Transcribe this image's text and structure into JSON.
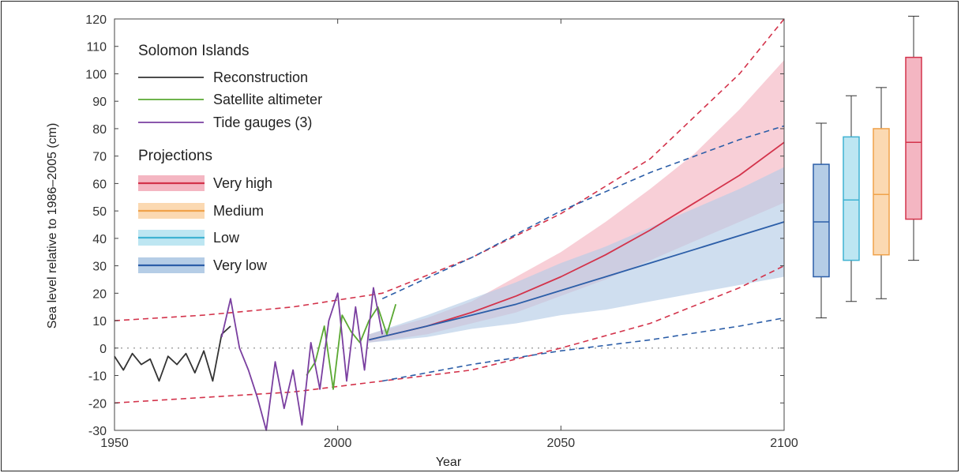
{
  "chart_data": {
    "type": "line",
    "xlabel": "Year",
    "ylabel": "Sea level relative to 1986–2005 (cm)",
    "xlim": [
      1950,
      2100
    ],
    "ylim": [
      -30,
      120
    ],
    "xticks": [
      "1950",
      "2000",
      "2050",
      "2100"
    ],
    "yticks": [
      "-30",
      "-20",
      "-10",
      "0",
      "10",
      "20",
      "30",
      "40",
      "50",
      "60",
      "70",
      "80",
      "90",
      "100",
      "110",
      "120"
    ],
    "legend": {
      "title": "Solomon Islands",
      "observations": [
        {
          "name": "Reconstruction",
          "color": "#333333"
        },
        {
          "name": "Satellite altimeter",
          "color": "#5aa832"
        },
        {
          "name": "Tide gauges (3)",
          "color": "#7a3fa0"
        }
      ],
      "projections_title": "Projections",
      "projections": [
        {
          "name": "Very high",
          "color": "#d3334b",
          "band": "#f4b6c2"
        },
        {
          "name": "Medium",
          "color": "#f0a24a",
          "band": "#fbd9b2"
        },
        {
          "name": "Low",
          "color": "#3fb2d2",
          "band": "#bde6f2"
        },
        {
          "name": "Very low",
          "color": "#2c5ea8",
          "band": "#b5cde6"
        }
      ]
    },
    "series": [
      {
        "name": "Reconstruction",
        "x": [
          1950,
          1952,
          1954,
          1956,
          1958,
          1960,
          1962,
          1964,
          1966,
          1968,
          1970,
          1972,
          1974,
          1976
        ],
        "y": [
          -3,
          -8,
          -2,
          -6,
          -4,
          -12,
          -3,
          -6,
          -2,
          -9,
          -1,
          -12,
          5,
          8
        ]
      },
      {
        "name": "Satellite altimeter",
        "x": [
          1993,
          1995,
          1997,
          1999,
          2001,
          2003,
          2005,
          2007,
          2009,
          2011,
          2013
        ],
        "y": [
          -10,
          -5,
          8,
          -15,
          12,
          6,
          2,
          10,
          15,
          5,
          16
        ]
      },
      {
        "name": "Tide gauges (3)",
        "x": [
          1974,
          1976,
          1978,
          1980,
          1982,
          1984,
          1986,
          1988,
          1990,
          1992,
          1994,
          1996,
          1998,
          2000,
          2002,
          2004,
          2006,
          2008,
          2010
        ],
        "y": [
          4,
          18,
          0,
          -8,
          -18,
          -30,
          -5,
          -22,
          -8,
          -28,
          2,
          -15,
          10,
          20,
          -12,
          15,
          -8,
          22,
          5
        ]
      },
      {
        "name": "Very high",
        "x": [
          2007,
          2020,
          2030,
          2040,
          2050,
          2060,
          2070,
          2080,
          2090,
          2100
        ],
        "y": [
          3,
          8,
          13,
          19,
          26,
          34,
          43,
          53,
          63,
          75
        ]
      },
      {
        "name": "Very low",
        "x": [
          2007,
          2020,
          2030,
          2040,
          2050,
          2060,
          2070,
          2080,
          2090,
          2100
        ],
        "y": [
          3,
          8,
          12,
          16,
          21,
          26,
          31,
          36,
          41,
          46
        ]
      }
    ],
    "bands": [
      {
        "name": "Very high",
        "x": [
          2007,
          2020,
          2030,
          2040,
          2050,
          2060,
          2070,
          2080,
          2090,
          2100
        ],
        "lower": [
          2,
          5,
          9,
          13,
          19,
          25,
          32,
          39,
          46,
          53
        ],
        "upper": [
          5,
          11,
          17,
          26,
          35,
          46,
          58,
          71,
          87,
          105
        ]
      },
      {
        "name": "Very low",
        "x": [
          2007,
          2020,
          2030,
          2040,
          2050,
          2060,
          2070,
          2080,
          2090,
          2100
        ],
        "lower": [
          2,
          4,
          7,
          9,
          12,
          14,
          17,
          20,
          23,
          26
        ],
        "upper": [
          5,
          12,
          18,
          24,
          31,
          37,
          44,
          51,
          58,
          66
        ]
      }
    ],
    "dashed_curves": [
      {
        "name": "Very high",
        "x": [
          1950,
          1970,
          1990,
          2010,
          2030,
          2050,
          2070,
          2090,
          2100
        ],
        "y": [
          10,
          12,
          15,
          20,
          33,
          49,
          69,
          100,
          120
        ]
      },
      {
        "name": "Very high",
        "x": [
          1950,
          1970,
          1990,
          2010,
          2030,
          2050,
          2070,
          2090,
          2100
        ],
        "y": [
          -20,
          -18,
          -16,
          -12,
          -8,
          0,
          9,
          22,
          30
        ]
      },
      {
        "name": "Very low",
        "x": [
          2010,
          2030,
          2050,
          2070,
          2090,
          2100
        ],
        "y": [
          18,
          33,
          50,
          64,
          76,
          81
        ]
      },
      {
        "name": "Very low",
        "x": [
          2010,
          2030,
          2050,
          2070,
          2090,
          2100
        ],
        "y": [
          -12,
          -6,
          -1,
          3,
          8,
          11
        ]
      }
    ],
    "zero_line": {
      "y": 0,
      "xlim": [
        1950,
        2100
      ]
    },
    "boxplots": [
      {
        "name": "Very low",
        "whisker_low": 11,
        "q1": 26,
        "median": 46,
        "q3": 67,
        "whisker_high": 82,
        "color": "#2c5ea8",
        "fill": "#b5cde6"
      },
      {
        "name": "Low",
        "whisker_low": 17,
        "q1": 32,
        "median": 54,
        "q3": 77,
        "whisker_high": 92,
        "color": "#3fb2d2",
        "fill": "#bde6f2"
      },
      {
        "name": "Medium",
        "whisker_low": 18,
        "q1": 34,
        "median": 56,
        "q3": 80,
        "whisker_high": 95,
        "color": "#f0a24a",
        "fill": "#fbd9b2"
      },
      {
        "name": "Very high",
        "whisker_low": 32,
        "q1": 47,
        "median": 75,
        "q3": 106,
        "whisker_high": 121,
        "color": "#d3334b",
        "fill": "#f4b6c2"
      }
    ]
  }
}
